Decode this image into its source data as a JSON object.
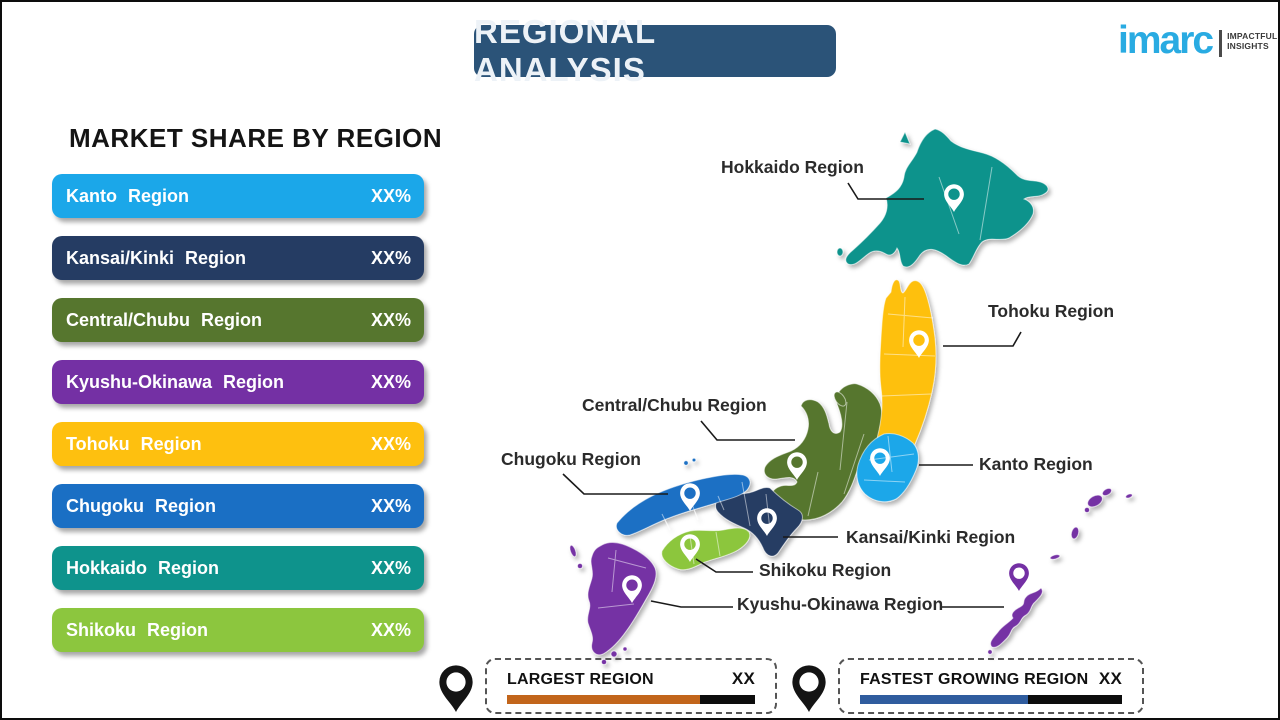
{
  "header": {
    "title": "REGIONAL ANALYSIS"
  },
  "logo": {
    "brand": "imarc",
    "tagline_line1": "IMPACTFUL",
    "tagline_line2": "INSIGHTS",
    "brand_color": "#29abe2"
  },
  "market_share": {
    "heading": "MARKET SHARE BY REGION",
    "items": [
      {
        "label": "Kanto Region",
        "value": "XX%",
        "color": "#1ba7e9"
      },
      {
        "label": "Kansai/Kinki Region",
        "value": "XX%",
        "color": "#253c63"
      },
      {
        "label": "Central/Chubu Region",
        "value": "XX%",
        "color": "#56762e"
      },
      {
        "label": "Kyushu-Okinawa Region",
        "value": "XX%",
        "color": "#7430a4"
      },
      {
        "label": "Tohoku Region",
        "value": "XX%",
        "color": "#fec00f"
      },
      {
        "label": "Chugoku Region",
        "value": "XX%",
        "color": "#1a6fc4"
      },
      {
        "label": "Hokkaido Region",
        "value": "XX%",
        "color": "#0e938c"
      },
      {
        "label": "Shikoku Region",
        "value": "XX%",
        "color": "#8cc63e"
      }
    ]
  },
  "map": {
    "labels": [
      {
        "id": "hokkaido",
        "text": "Hokkaido Region"
      },
      {
        "id": "tohoku",
        "text": "Tohoku Region"
      },
      {
        "id": "central-chubu",
        "text": "Central/Chubu Region"
      },
      {
        "id": "chugoku",
        "text": "Chugoku Region"
      },
      {
        "id": "kanto",
        "text": "Kanto Region"
      },
      {
        "id": "kansai-kinki",
        "text": "Kansai/Kinki Region"
      },
      {
        "id": "shikoku",
        "text": "Shikoku Region"
      },
      {
        "id": "kyushu-okinawa",
        "text": "Kyushu-Okinawa Region"
      }
    ],
    "pin_icon": "location-pin",
    "pin_color_default": "#ffffff"
  },
  "legend": {
    "largest": {
      "label": "LARGEST REGION",
      "value": "XX",
      "bar_color": "#c2651b",
      "bar_fill_pct": 78
    },
    "fastest": {
      "label": "FASTEST GROWING REGION",
      "value": "XX",
      "bar_color": "#2f5c9e",
      "bar_fill_pct": 64
    },
    "pin_icon": "location-pin",
    "pin_color": "#141414"
  },
  "chart_data": {
    "type": "table",
    "title": "MARKET SHARE BY REGION",
    "categories": [
      "Kanto Region",
      "Kansai/Kinki Region",
      "Central/Chubu Region",
      "Kyushu-Okinawa Region",
      "Tohoku Region",
      "Chugoku Region",
      "Hokkaido Region",
      "Shikoku Region"
    ],
    "values": [
      "XX%",
      "XX%",
      "XX%",
      "XX%",
      "XX%",
      "XX%",
      "XX%",
      "XX%"
    ]
  }
}
